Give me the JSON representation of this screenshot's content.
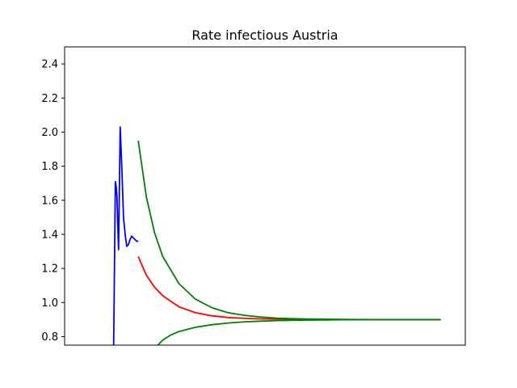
{
  "chart_data": {
    "type": "line",
    "title": "Rate infectious Austria",
    "xlabel": "",
    "ylabel": "",
    "ylim": [
      0.75,
      2.5
    ],
    "xlim": [
      -30,
      215
    ],
    "grid": false,
    "legend": "none",
    "x_tick_labels_shown": false,
    "yticks": [
      {
        "value": 0.8,
        "label": "0.8"
      },
      {
        "value": 1.0,
        "label": "1.0"
      },
      {
        "value": 1.2,
        "label": "1.2"
      },
      {
        "value": 1.4,
        "label": "1.4"
      },
      {
        "value": 1.6,
        "label": "1.6"
      },
      {
        "value": 1.8,
        "label": "1.8"
      },
      {
        "value": 2.0,
        "label": "2.0"
      },
      {
        "value": 2.2,
        "label": "2.2"
      },
      {
        "value": 2.4,
        "label": "2.4"
      }
    ],
    "series": [
      {
        "color": "#0000ff",
        "x": [
          0,
          0.5,
          1,
          1.5,
          2,
          2.5,
          3,
          4,
          5,
          6,
          7,
          8,
          9,
          10,
          11,
          12,
          13,
          14,
          15
        ],
        "y": [
          0.75,
          1.2,
          1.71,
          1.68,
          1.62,
          1.45,
          1.31,
          2.03,
          1.78,
          1.5,
          1.4,
          1.33,
          1.34,
          1.37,
          1.39,
          1.38,
          1.37,
          1.36,
          1.36
        ]
      },
      {
        "color": "#ff0000",
        "x": [
          15,
          20,
          25,
          30,
          40,
          50,
          60,
          70,
          80,
          90,
          100,
          120,
          140,
          160,
          180,
          200
        ],
        "y": [
          1.27,
          1.16,
          1.09,
          1.04,
          0.975,
          0.94,
          0.922,
          0.912,
          0.907,
          0.904,
          0.902,
          0.9,
          0.9,
          0.9,
          0.9,
          0.9
        ]
      },
      {
        "color": "#008000",
        "x": [
          15,
          20,
          25,
          30,
          40,
          50,
          60,
          70,
          80,
          90,
          100,
          110,
          120,
          140,
          160,
          180,
          200
        ],
        "y": [
          1.95,
          1.62,
          1.41,
          1.27,
          1.11,
          1.02,
          0.97,
          0.94,
          0.925,
          0.915,
          0.908,
          0.905,
          0.903,
          0.901,
          0.9,
          0.9,
          0.9
        ]
      },
      {
        "color": "#008000",
        "x": [
          27,
          30,
          35,
          40,
          50,
          60,
          70,
          80,
          90,
          100,
          110,
          120,
          140,
          160,
          180,
          200
        ],
        "y": [
          0.75,
          0.78,
          0.81,
          0.83,
          0.855,
          0.87,
          0.88,
          0.887,
          0.891,
          0.894,
          0.896,
          0.897,
          0.899,
          0.9,
          0.9,
          0.9
        ]
      }
    ]
  }
}
